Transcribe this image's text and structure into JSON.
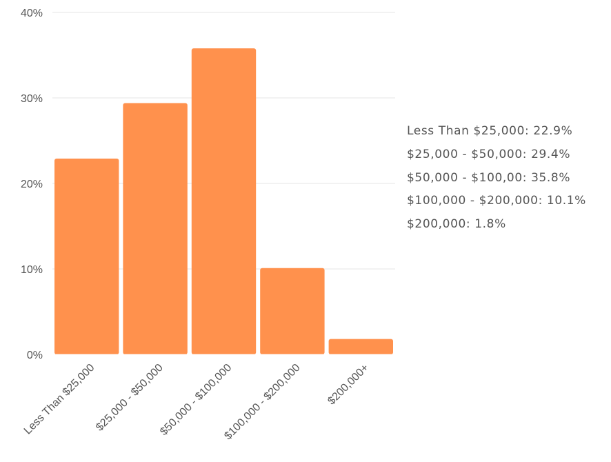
{
  "chart_data": {
    "type": "bar",
    "categories": [
      "Less Than $25,000",
      "$25,000 - $50,000",
      "$50,000 - $100,000",
      "$100,000 - $200,000",
      "$200,000+"
    ],
    "values": [
      22.9,
      29.4,
      35.8,
      10.1,
      1.8
    ],
    "ylim": [
      0,
      40
    ],
    "yticks": [
      0,
      10,
      20,
      30,
      40
    ],
    "ytick_labels": [
      "0%",
      "10%",
      "20%",
      "30%",
      "40%"
    ],
    "grid": true,
    "bar_color": "#ff914d",
    "legend_items": [
      "Less Than $25,000: 22.9%",
      "$25,000 - $50,000: 29.4%",
      "$50,000 - $100,00: 35.8%",
      "$100,000 - $200,000: 10.1%",
      "$200,000: 1.8%"
    ]
  }
}
